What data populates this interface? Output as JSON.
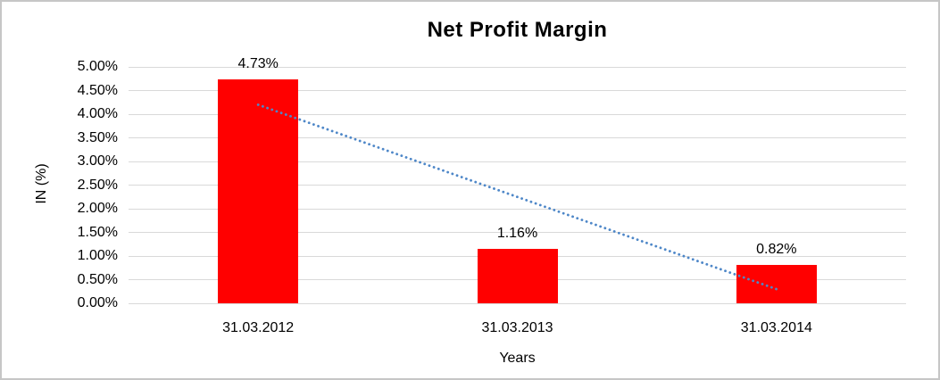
{
  "window": {
    "background_color": "#FFFFFF",
    "border_color": "#C6C6C6"
  },
  "chart_data": {
    "type": "bar",
    "title": "Net Profit Margin",
    "xlabel": "Years",
    "ylabel": "IN (%)",
    "categories": [
      "31.03.2012",
      "31.03.2013",
      "31.03.2014"
    ],
    "values": [
      4.73,
      1.16,
      0.82
    ],
    "bar_labels": [
      "4.73%",
      "1.16%",
      "0.82%"
    ],
    "y_ticks": [
      "0.00%",
      "0.50%",
      "1.00%",
      "1.50%",
      "2.00%",
      "2.50%",
      "3.00%",
      "3.50%",
      "4.00%",
      "4.50%",
      "5.00%"
    ],
    "ylim": [
      0,
      5
    ],
    "y_step": 0.5,
    "grid": true,
    "legend_position": "none",
    "bar_color": "#FF0000",
    "gridline_color": "#D9D9D9",
    "trendline": {
      "type": "linear",
      "style": "dotted",
      "color": "#4E87C8",
      "start": {
        "category_index": 0,
        "value": 4.2
      },
      "end": {
        "category_index": 2,
        "value": 0.3
      }
    }
  }
}
